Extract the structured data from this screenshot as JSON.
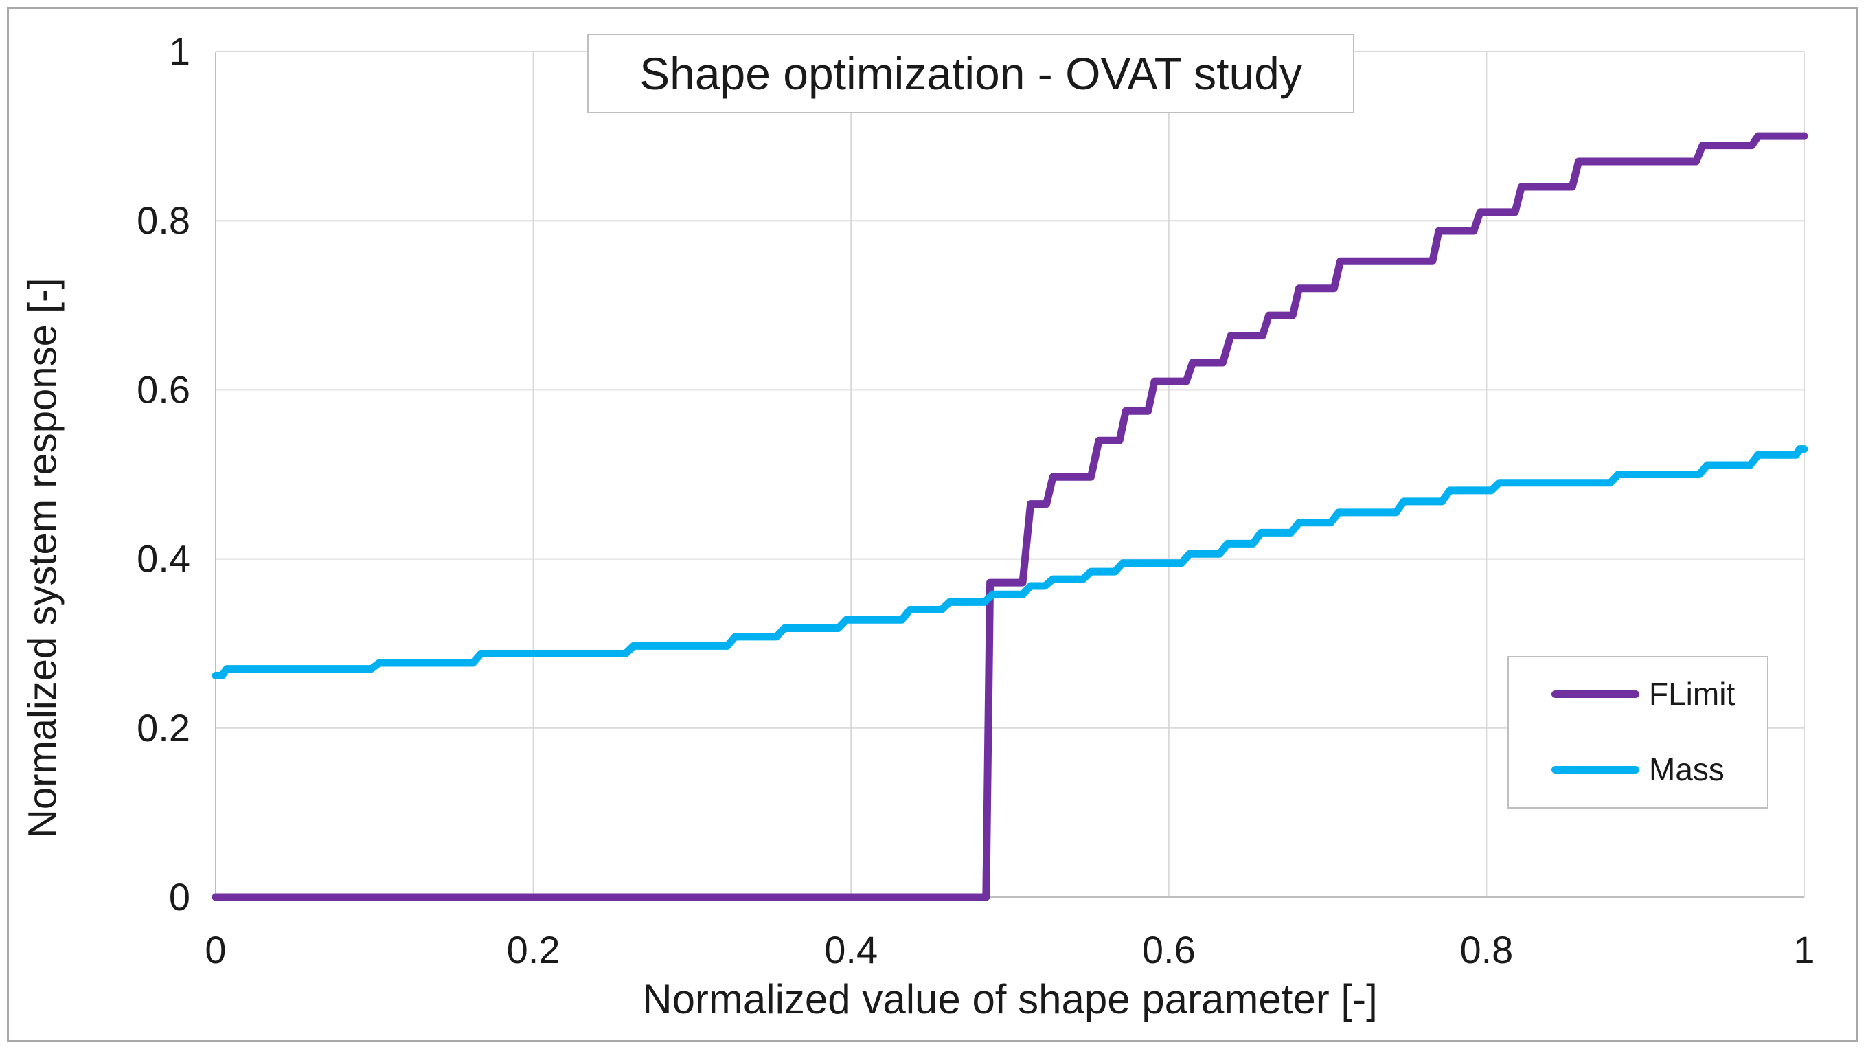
{
  "chart_data": {
    "type": "line",
    "title": "Shape optimization - OVAT study",
    "xlabel": "Normalized value of shape parameter [-]",
    "ylabel": "Normalized system response [-]",
    "xlim": [
      0,
      1
    ],
    "ylim": [
      0,
      1
    ],
    "x_ticks": [
      0,
      0.2,
      0.4,
      0.6,
      0.8,
      1
    ],
    "y_ticks": [
      0,
      0.2,
      0.4,
      0.6,
      0.8,
      1
    ],
    "x_tick_labels": [
      "0",
      "0.2",
      "0.4",
      "0.6",
      "0.8",
      "1"
    ],
    "y_tick_labels": [
      "0",
      "0.2",
      "0.4",
      "0.6",
      "0.8",
      "1"
    ],
    "grid": true,
    "legend_position": "inside-right",
    "series": [
      {
        "name": "FLimit",
        "color": "#7030A0",
        "points": [
          [
            0,
            0
          ],
          [
            0.485,
            0
          ],
          [
            0.4875,
            0.372
          ],
          [
            0.508,
            0.372
          ],
          [
            0.513,
            0.465
          ],
          [
            0.523,
            0.465
          ],
          [
            0.527,
            0.497
          ],
          [
            0.551,
            0.497
          ],
          [
            0.556,
            0.54
          ],
          [
            0.569,
            0.54
          ],
          [
            0.573,
            0.575
          ],
          [
            0.587,
            0.575
          ],
          [
            0.591,
            0.61
          ],
          [
            0.611,
            0.61
          ],
          [
            0.615,
            0.632
          ],
          [
            0.634,
            0.632
          ],
          [
            0.639,
            0.664
          ],
          [
            0.659,
            0.664
          ],
          [
            0.663,
            0.688
          ],
          [
            0.678,
            0.688
          ],
          [
            0.682,
            0.72
          ],
          [
            0.704,
            0.72
          ],
          [
            0.708,
            0.752
          ],
          [
            0.766,
            0.752
          ],
          [
            0.77,
            0.788
          ],
          [
            0.792,
            0.788
          ],
          [
            0.796,
            0.81
          ],
          [
            0.818,
            0.81
          ],
          [
            0.822,
            0.84
          ],
          [
            0.854,
            0.84
          ],
          [
            0.858,
            0.87
          ],
          [
            0.932,
            0.87
          ],
          [
            0.936,
            0.889
          ],
          [
            0.967,
            0.889
          ],
          [
            0.971,
            0.9
          ],
          [
            1,
            0.9
          ]
        ]
      },
      {
        "name": "Mass",
        "color": "#00B0F0",
        "points": [
          [
            0,
            0.262
          ],
          [
            0.004,
            0.262
          ],
          [
            0.007,
            0.27
          ],
          [
            0.098,
            0.27
          ],
          [
            0.103,
            0.277
          ],
          [
            0.162,
            0.277
          ],
          [
            0.167,
            0.288
          ],
          [
            0.258,
            0.288
          ],
          [
            0.263,
            0.297
          ],
          [
            0.322,
            0.297
          ],
          [
            0.327,
            0.308
          ],
          [
            0.353,
            0.308
          ],
          [
            0.358,
            0.318
          ],
          [
            0.392,
            0.318
          ],
          [
            0.397,
            0.328
          ],
          [
            0.432,
            0.328
          ],
          [
            0.437,
            0.34
          ],
          [
            0.457,
            0.34
          ],
          [
            0.462,
            0.349
          ],
          [
            0.484,
            0.349
          ],
          [
            0.489,
            0.358
          ],
          [
            0.508,
            0.358
          ],
          [
            0.513,
            0.368
          ],
          [
            0.522,
            0.368
          ],
          [
            0.527,
            0.376
          ],
          [
            0.546,
            0.376
          ],
          [
            0.551,
            0.385
          ],
          [
            0.566,
            0.385
          ],
          [
            0.571,
            0.395
          ],
          [
            0.608,
            0.395
          ],
          [
            0.613,
            0.406
          ],
          [
            0.632,
            0.406
          ],
          [
            0.637,
            0.418
          ],
          [
            0.653,
            0.418
          ],
          [
            0.658,
            0.431
          ],
          [
            0.677,
            0.431
          ],
          [
            0.682,
            0.443
          ],
          [
            0.702,
            0.443
          ],
          [
            0.707,
            0.455
          ],
          [
            0.743,
            0.455
          ],
          [
            0.748,
            0.468
          ],
          [
            0.772,
            0.468
          ],
          [
            0.777,
            0.481
          ],
          [
            0.803,
            0.481
          ],
          [
            0.808,
            0.49
          ],
          [
            0.878,
            0.49
          ],
          [
            0.883,
            0.5
          ],
          [
            0.934,
            0.5
          ],
          [
            0.939,
            0.511
          ],
          [
            0.966,
            0.511
          ],
          [
            0.971,
            0.523
          ],
          [
            0.995,
            0.523
          ],
          [
            0.997,
            0.53
          ],
          [
            1,
            0.53
          ]
        ]
      }
    ]
  },
  "colors": {
    "gridline": "#d9d9d9",
    "axis_line": "#bfbfbf",
    "text": "#1a1a1a",
    "frame_border": "#a8a8a8",
    "background": "#ffffff"
  }
}
